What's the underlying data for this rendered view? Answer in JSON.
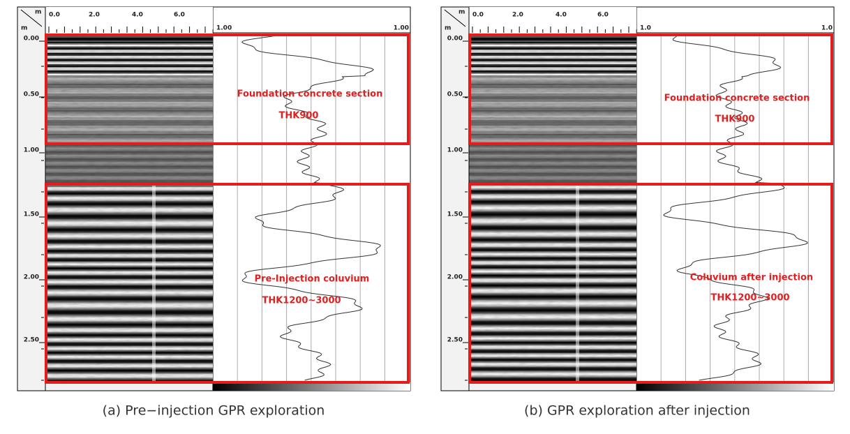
{
  "panels": [
    {
      "x_unit": "m",
      "depth_unit": "m",
      "x_ticks": [
        "0.0",
        "2.0",
        "4.0",
        "6.0"
      ],
      "depth_ticks": [
        "0.00",
        "0.50",
        "1.00",
        "1.50",
        "2.00",
        "2.50"
      ],
      "trace_left_label": "1.00",
      "trace_right_label": "1.00",
      "annotations": [
        {
          "title": "Foundation concrete section",
          "thickness": "THK900"
        },
        {
          "title": "Pre-Injection coluvium",
          "thickness": "THK1200~3000"
        }
      ],
      "caption": "(a) Pre−injection GPR exploration"
    },
    {
      "x_unit": "m",
      "depth_unit": "m",
      "x_ticks": [
        "0.0",
        "2.0",
        "4.0",
        "6.0"
      ],
      "depth_ticks": [
        "0.00",
        "0.50",
        "1.00",
        "1.50",
        "2.00",
        "2.50"
      ],
      "trace_left_label": "1.0",
      "trace_right_label": "1.0",
      "annotations": [
        {
          "title": "Foundation concrete section",
          "thickness": "THK900"
        },
        {
          "title": "Coluvium after injection",
          "thickness": "THK1200~3000"
        }
      ],
      "caption": "(b) GPR exploration after injection"
    }
  ]
}
